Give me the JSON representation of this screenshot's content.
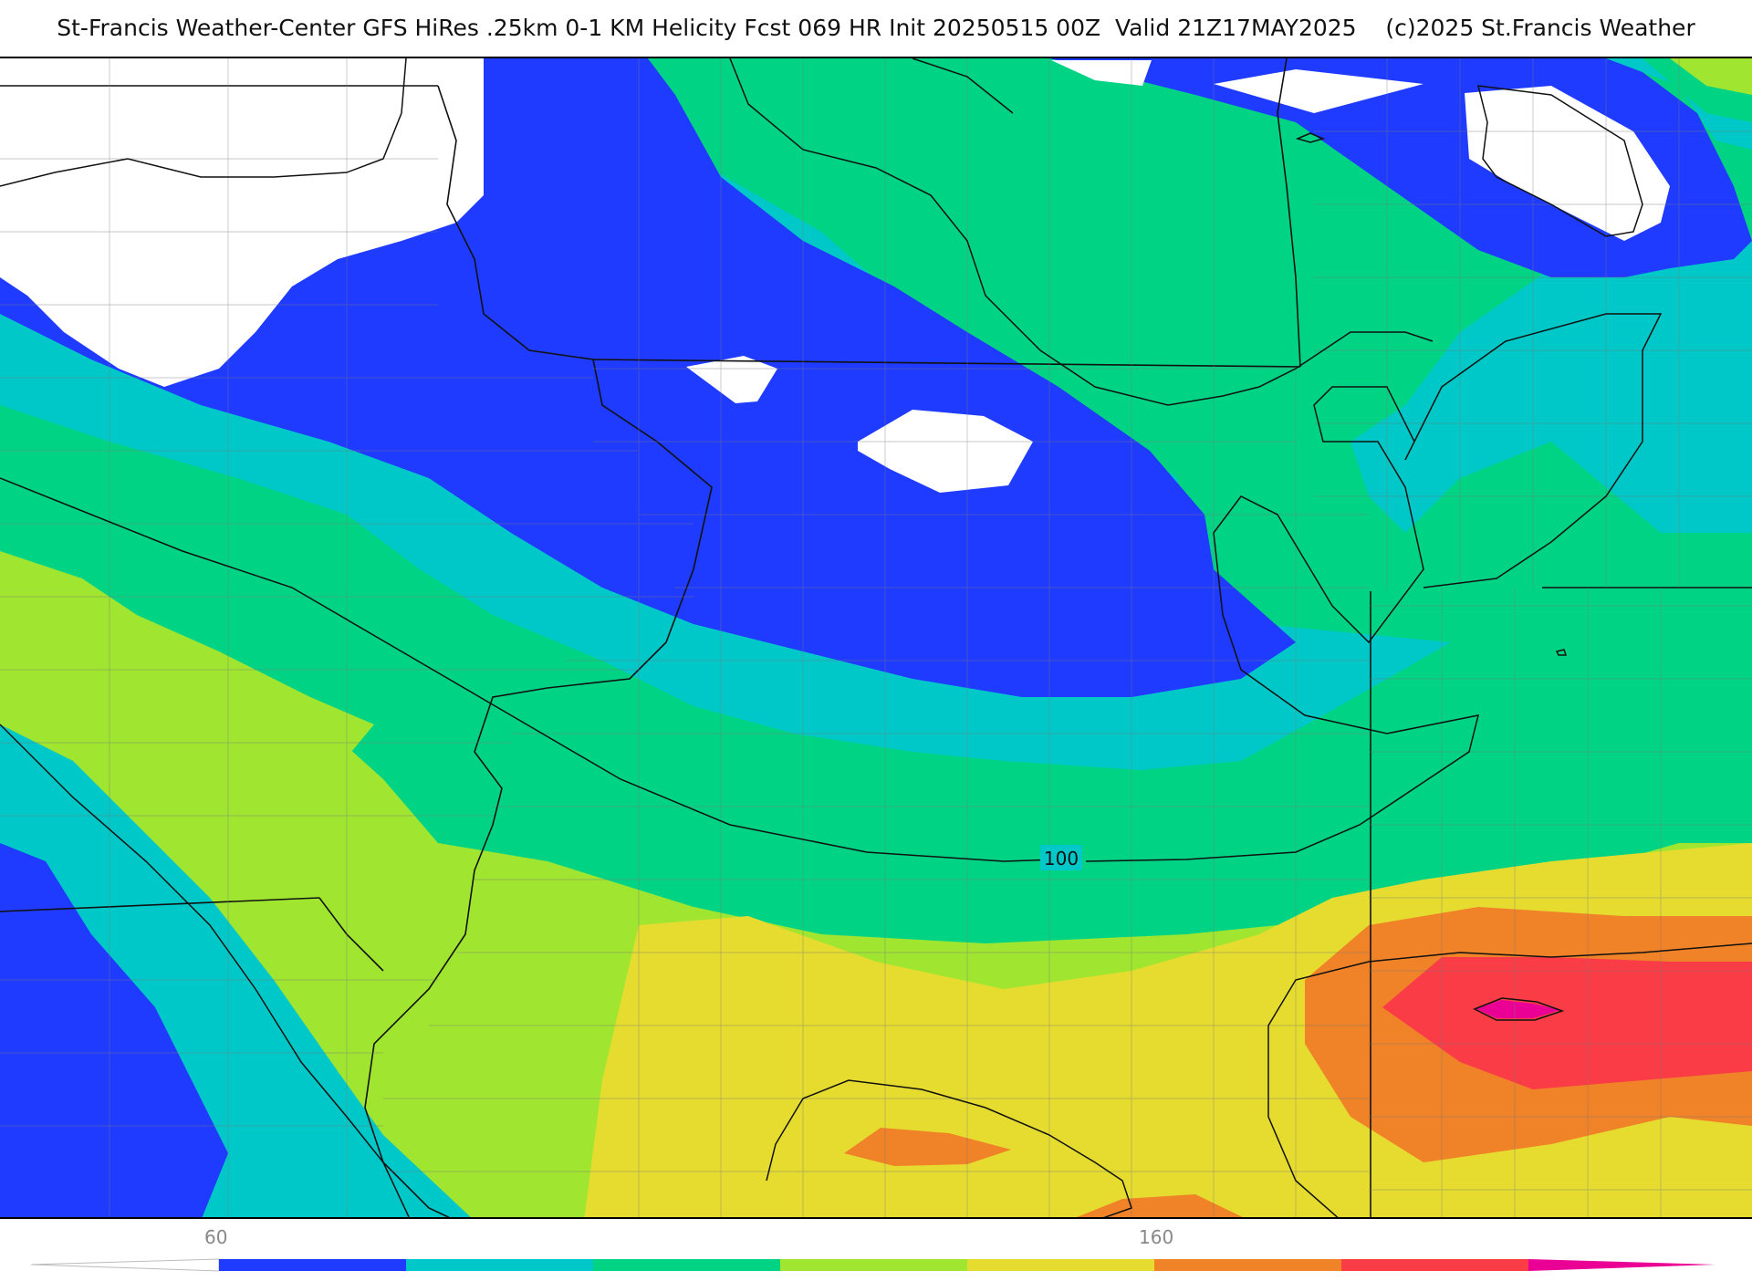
{
  "title": "St-Francis Weather-Center GFS HiRes .25km 0-1 KM Helicity Fcst 069 HR Init 20250515 00Z  Valid 21Z17MAY2025    (c)2025 St.Francis Weather",
  "map": {
    "contour_label": "100",
    "palette": {
      "below": "#ffffff",
      "c60": "#1f3bff",
      "c80": "#00c8c8",
      "c100": "#00d484",
      "c120": "#a0e630",
      "c140": "#e6dc30",
      "c160": "#f08228",
      "c180": "#fa3c46",
      "c200": "#eb0096"
    }
  },
  "colorbar": {
    "tick_labels": [
      "60",
      "160"
    ],
    "colors": [
      "#1f3bff",
      "#00c8c8",
      "#00d484",
      "#a0e630",
      "#e6dc30",
      "#f08228",
      "#fa3c46"
    ]
  }
}
